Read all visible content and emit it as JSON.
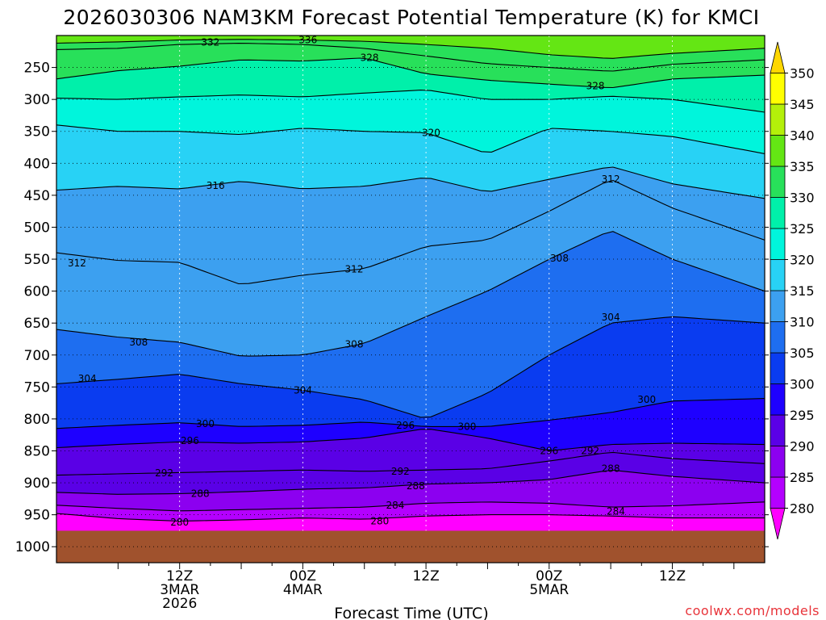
{
  "chart_data": {
    "type": "heatmap",
    "title": "2026030306 NAM3KM Forecast Potential Temperature (K) for KMCI",
    "xlabel": "Forecast Time (UTC)",
    "ylabel": "",
    "credit": "coolwx.com/models",
    "x_range_hours": [
      -6,
      63
    ],
    "y_range_hPa": [
      200,
      1025
    ],
    "y_ticks": [
      250,
      300,
      350,
      400,
      450,
      500,
      550,
      600,
      650,
      700,
      750,
      800,
      850,
      900,
      950,
      1000
    ],
    "y_tick_labels": [
      "250",
      "300",
      "350",
      "400",
      "450",
      "500",
      "550",
      "600",
      "650",
      "700",
      "750",
      "800",
      "850",
      "900",
      "950",
      "1000"
    ],
    "x_ticks": [
      {
        "hours": 6,
        "lines": [
          "12Z",
          "3MAR",
          "2026"
        ]
      },
      {
        "hours": 18,
        "lines": [
          "00Z",
          "4MAR"
        ]
      },
      {
        "hours": 30,
        "lines": [
          "12Z"
        ]
      },
      {
        "hours": 42,
        "lines": [
          "00Z",
          "5MAR"
        ]
      },
      {
        "hours": 54,
        "lines": [
          "12Z"
        ]
      }
    ],
    "colorbar": {
      "levels": [
        280,
        285,
        290,
        295,
        300,
        305,
        310,
        315,
        320,
        325,
        330,
        335,
        340,
        345,
        350
      ],
      "labels": [
        "280",
        "285",
        "290",
        "295",
        "300",
        "305",
        "310",
        "315",
        "320",
        "325",
        "330",
        "335",
        "340",
        "345",
        "350"
      ],
      "colors": [
        "#ff00ff",
        "#b400ff",
        "#8c00f0",
        "#5a00e6",
        "#1e00ff",
        "#0a3cf0",
        "#1e6ef0",
        "#3ca0f0",
        "#28d2f5",
        "#00f5dc",
        "#00f0aa",
        "#28e05a",
        "#64e614",
        "#b4f00a",
        "#ffff00",
        "#ffd700"
      ]
    },
    "ground_level_hPa": 975,
    "ground_color": "#a0522d",
    "contour_levels_K": [
      280,
      284,
      288,
      292,
      296,
      300,
      304,
      308,
      312,
      316,
      320,
      324,
      328,
      332,
      336
    ],
    "contour_labels": [
      {
        "value": "336",
        "hours": 18.5,
        "p": 207
      },
      {
        "value": "332",
        "hours": 9,
        "p": 211
      },
      {
        "value": "328",
        "hours": 24.5,
        "p": 235
      },
      {
        "value": "328",
        "hours": 46.5,
        "p": 279
      },
      {
        "value": "320",
        "hours": 30.5,
        "p": 352
      },
      {
        "value": "316",
        "hours": 9.5,
        "p": 435
      },
      {
        "value": "312",
        "hours": 48,
        "p": 425
      },
      {
        "value": "312",
        "hours": -4,
        "p": 556
      },
      {
        "value": "312",
        "hours": 23,
        "p": 566
      },
      {
        "value": "308",
        "hours": 43,
        "p": 549
      },
      {
        "value": "308",
        "hours": 2,
        "p": 680
      },
      {
        "value": "308",
        "hours": 23,
        "p": 683
      },
      {
        "value": "304",
        "hours": 48,
        "p": 641
      },
      {
        "value": "304",
        "hours": -3,
        "p": 737
      },
      {
        "value": "304",
        "hours": 18,
        "p": 755
      },
      {
        "value": "300",
        "hours": 8.5,
        "p": 808
      },
      {
        "value": "300",
        "hours": 34,
        "p": 812
      },
      {
        "value": "300",
        "hours": 51.5,
        "p": 770
      },
      {
        "value": "296",
        "hours": 7,
        "p": 834
      },
      {
        "value": "296",
        "hours": 28,
        "p": 810
      },
      {
        "value": "296",
        "hours": 42,
        "p": 850
      },
      {
        "value": "292",
        "hours": 4.5,
        "p": 885
      },
      {
        "value": "292",
        "hours": 27.5,
        "p": 882
      },
      {
        "value": "292",
        "hours": 46,
        "p": 850
      },
      {
        "value": "288",
        "hours": 8,
        "p": 917
      },
      {
        "value": "288",
        "hours": 29,
        "p": 905
      },
      {
        "value": "288",
        "hours": 48,
        "p": 878
      },
      {
        "value": "284",
        "hours": 27,
        "p": 935
      },
      {
        "value": "284",
        "hours": 48.5,
        "p": 945
      },
      {
        "value": "280",
        "hours": 6,
        "p": 962
      },
      {
        "value": "280",
        "hours": 25.5,
        "p": 960
      }
    ],
    "isentropes": [
      {
        "value": 280,
        "points": [
          [
            -6,
            948
          ],
          [
            0,
            956
          ],
          [
            6,
            960
          ],
          [
            12,
            958
          ],
          [
            18,
            955
          ],
          [
            24,
            957
          ],
          [
            30,
            952
          ],
          [
            36,
            950
          ],
          [
            42,
            950
          ],
          [
            48,
            952
          ],
          [
            54,
            955
          ],
          [
            63,
            955
          ]
        ]
      },
      {
        "value": 284,
        "points": [
          [
            -6,
            935
          ],
          [
            0,
            940
          ],
          [
            6,
            944
          ],
          [
            12,
            942
          ],
          [
            18,
            940
          ],
          [
            24,
            938
          ],
          [
            30,
            932
          ],
          [
            36,
            930
          ],
          [
            42,
            932
          ],
          [
            48,
            938
          ],
          [
            54,
            936
          ],
          [
            63,
            930
          ]
        ]
      },
      {
        "value": 288,
        "points": [
          [
            -6,
            915
          ],
          [
            0,
            918
          ],
          [
            6,
            917
          ],
          [
            12,
            914
          ],
          [
            18,
            910
          ],
          [
            24,
            908
          ],
          [
            30,
            902
          ],
          [
            36,
            900
          ],
          [
            42,
            895
          ],
          [
            48,
            880
          ],
          [
            54,
            890
          ],
          [
            63,
            900
          ]
        ]
      },
      {
        "value": 292,
        "points": [
          [
            -6,
            888
          ],
          [
            0,
            886
          ],
          [
            6,
            884
          ],
          [
            12,
            882
          ],
          [
            18,
            880
          ],
          [
            24,
            882
          ],
          [
            30,
            880
          ],
          [
            36,
            878
          ],
          [
            42,
            866
          ],
          [
            48,
            852
          ],
          [
            54,
            862
          ],
          [
            63,
            870
          ]
        ]
      },
      {
        "value": 296,
        "points": [
          [
            -6,
            845
          ],
          [
            0,
            840
          ],
          [
            6,
            836
          ],
          [
            12,
            838
          ],
          [
            18,
            836
          ],
          [
            24,
            830
          ],
          [
            30,
            815
          ],
          [
            36,
            830
          ],
          [
            42,
            850
          ],
          [
            48,
            840
          ],
          [
            54,
            838
          ],
          [
            63,
            840
          ]
        ]
      },
      {
        "value": 300,
        "points": [
          [
            -6,
            815
          ],
          [
            0,
            810
          ],
          [
            6,
            806
          ],
          [
            12,
            812
          ],
          [
            18,
            810
          ],
          [
            24,
            805
          ],
          [
            30,
            812
          ],
          [
            36,
            812
          ],
          [
            42,
            802
          ],
          [
            48,
            790
          ],
          [
            54,
            772
          ],
          [
            63,
            768
          ]
        ]
      },
      {
        "value": 304,
        "points": [
          [
            -6,
            745
          ],
          [
            0,
            738
          ],
          [
            6,
            730
          ],
          [
            12,
            745
          ],
          [
            18,
            755
          ],
          [
            24,
            770
          ],
          [
            30,
            800
          ],
          [
            36,
            760
          ],
          [
            42,
            700
          ],
          [
            48,
            650
          ],
          [
            54,
            640
          ],
          [
            63,
            650
          ]
        ]
      },
      {
        "value": 308,
        "points": [
          [
            -6,
            660
          ],
          [
            0,
            672
          ],
          [
            6,
            680
          ],
          [
            12,
            702
          ],
          [
            18,
            700
          ],
          [
            24,
            682
          ],
          [
            30,
            640
          ],
          [
            36,
            600
          ],
          [
            42,
            550
          ],
          [
            48,
            505
          ],
          [
            54,
            550
          ],
          [
            63,
            600
          ]
        ]
      },
      {
        "value": 312,
        "points": [
          [
            -6,
            540
          ],
          [
            0,
            552
          ],
          [
            6,
            555
          ],
          [
            12,
            590
          ],
          [
            18,
            575
          ],
          [
            24,
            565
          ],
          [
            30,
            530
          ],
          [
            36,
            520
          ],
          [
            42,
            475
          ],
          [
            48,
            425
          ],
          [
            54,
            470
          ],
          [
            63,
            520
          ]
        ]
      },
      {
        "value": 316,
        "points": [
          [
            -6,
            442
          ],
          [
            0,
            436
          ],
          [
            6,
            440
          ],
          [
            12,
            428
          ],
          [
            18,
            440
          ],
          [
            24,
            436
          ],
          [
            30,
            422
          ],
          [
            36,
            445
          ],
          [
            42,
            425
          ],
          [
            48,
            405
          ],
          [
            54,
            432
          ],
          [
            63,
            455
          ]
        ]
      },
      {
        "value": 320,
        "points": [
          [
            -6,
            340
          ],
          [
            0,
            350
          ],
          [
            6,
            350
          ],
          [
            12,
            355
          ],
          [
            18,
            345
          ],
          [
            24,
            350
          ],
          [
            30,
            352
          ],
          [
            36,
            385
          ],
          [
            42,
            345
          ],
          [
            48,
            350
          ],
          [
            54,
            358
          ],
          [
            63,
            385
          ]
        ]
      },
      {
        "value": 324,
        "points": [
          [
            -6,
            298
          ],
          [
            0,
            300
          ],
          [
            6,
            296
          ],
          [
            12,
            293
          ],
          [
            18,
            296
          ],
          [
            24,
            290
          ],
          [
            30,
            285
          ],
          [
            36,
            300
          ],
          [
            42,
            300
          ],
          [
            48,
            295
          ],
          [
            54,
            300
          ],
          [
            63,
            320
          ]
        ]
      },
      {
        "value": 328,
        "points": [
          [
            -6,
            268
          ],
          [
            0,
            255
          ],
          [
            6,
            248
          ],
          [
            12,
            238
          ],
          [
            18,
            240
          ],
          [
            24,
            235
          ],
          [
            30,
            260
          ],
          [
            36,
            270
          ],
          [
            42,
            276
          ],
          [
            48,
            282
          ],
          [
            54,
            268
          ],
          [
            63,
            262
          ]
        ]
      },
      {
        "value": 332,
        "points": [
          [
            -6,
            222
          ],
          [
            0,
            220
          ],
          [
            6,
            214
          ],
          [
            12,
            212
          ],
          [
            18,
            214
          ],
          [
            24,
            220
          ],
          [
            30,
            232
          ],
          [
            36,
            244
          ],
          [
            42,
            250
          ],
          [
            48,
            256
          ],
          [
            54,
            245
          ],
          [
            63,
            238
          ]
        ]
      },
      {
        "value": 336,
        "points": [
          [
            -6,
            212
          ],
          [
            0,
            210
          ],
          [
            6,
            207
          ],
          [
            12,
            206
          ],
          [
            18,
            207
          ],
          [
            24,
            209
          ],
          [
            30,
            214
          ],
          [
            36,
            220
          ],
          [
            42,
            230
          ],
          [
            48,
            236
          ],
          [
            54,
            228
          ],
          [
            63,
            220
          ]
        ]
      }
    ]
  }
}
